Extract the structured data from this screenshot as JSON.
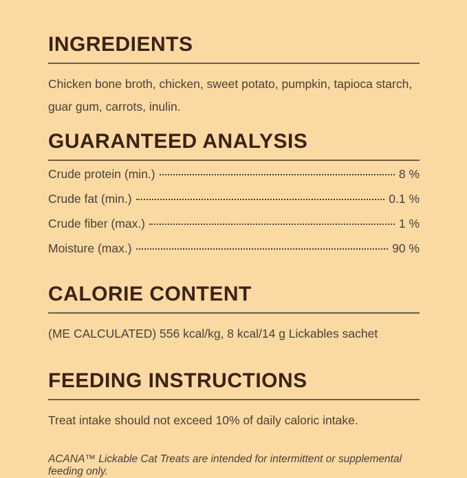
{
  "page": {
    "background": "#FBD9A3",
    "heading_color": "#3B2316",
    "body_color": "#4A4136",
    "rule_color": "#6E5C45"
  },
  "ingredients": {
    "title": "INGREDIENTS",
    "body": "Chicken bone broth, chicken, sweet potato, pumpkin, tapioca starch, guar gum, carrots, inulin."
  },
  "guaranteed_analysis": {
    "title": "GUARANTEED ANALYSIS",
    "rows": [
      {
        "label": "Crude protein (min.)",
        "value": "8 %"
      },
      {
        "label": "Crude fat (min.)",
        "value": "0.1 %"
      },
      {
        "label": "Crude fiber (max.)",
        "value": "1 %"
      },
      {
        "label": "Moisture (max.)",
        "value": "90 %"
      }
    ]
  },
  "calorie_content": {
    "title": "CALORIE CONTENT",
    "body": "(ME CALCULATED) 556 kcal/kg, 8 kcal/14 g Lickables sachet"
  },
  "feeding_instructions": {
    "title": "FEEDING INSTRUCTIONS",
    "body": "Treat intake should not exceed 10% of daily caloric intake.",
    "note": "ACANA™ Lickable Cat Treats are intended for intermittent or supplemental feeding only."
  }
}
